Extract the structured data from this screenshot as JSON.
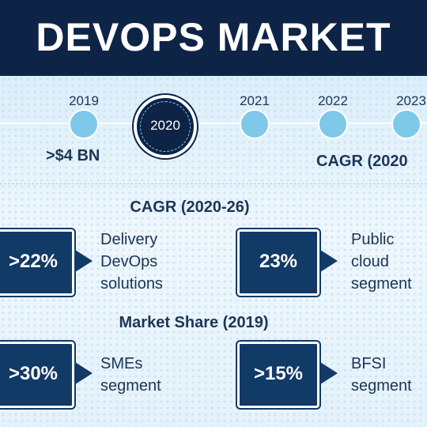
{
  "title": "DEVOPS MARKET",
  "timeline": {
    "years": [
      "2019",
      "2020",
      "2021",
      "2022",
      "2023"
    ],
    "highlighted_year": "2020",
    "value_2019": ">$4 BN",
    "cagr_partial": "CAGR (2020"
  },
  "cagr_section": {
    "heading": "CAGR (2020-26)",
    "left": {
      "value": ">22%",
      "lines": [
        "Delivery",
        "DevOps",
        "solutions"
      ]
    },
    "right": {
      "value": "23%",
      "lines": [
        "Public",
        "cloud",
        "segment"
      ]
    }
  },
  "share_section": {
    "heading": "Market Share (2019)",
    "left": {
      "value": ">30%",
      "lines": [
        "SMEs",
        "segment"
      ]
    },
    "right": {
      "value": ">15%",
      "lines": [
        "BFSI",
        "segment"
      ]
    }
  },
  "colors": {
    "navy": "#0d2447",
    "box": "#123a67",
    "accent": "#7ec8ea"
  }
}
